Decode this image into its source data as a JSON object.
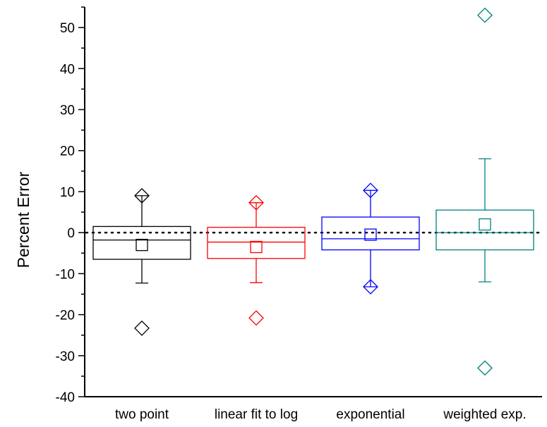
{
  "chart_data": {
    "type": "box",
    "title": "",
    "xlabel": "",
    "ylabel": "Percent Error",
    "ylim": [
      -40,
      55
    ],
    "yticks": [
      -40,
      -30,
      -20,
      -10,
      0,
      10,
      20,
      30,
      40,
      50
    ],
    "minor_step": 5,
    "grid": false,
    "legend": "none",
    "reference_line": {
      "y": 0,
      "style": "dotted",
      "color": "#000000"
    },
    "categories": [
      "two point",
      "linear fit to log",
      "exponential",
      "weighted exp."
    ],
    "series": [
      {
        "category": "two point",
        "color": "#000000",
        "whisker_low": -12.3,
        "q1": -6.5,
        "median": -1.8,
        "q3": 1.5,
        "whisker_high": 9.0,
        "mean": -3.0,
        "min": -23.3,
        "max": 9.0
      },
      {
        "category": "linear fit to log",
        "color": "#ff0000",
        "whisker_low": -12.2,
        "q1": -6.3,
        "median": -2.3,
        "q3": 1.3,
        "whisker_high": 7.3,
        "mean": -3.5,
        "min": -20.8,
        "max": 7.3
      },
      {
        "category": "exponential",
        "color": "#0000ff",
        "whisker_low": -13.2,
        "q1": -4.2,
        "median": -1.5,
        "q3": 3.8,
        "whisker_high": 10.3,
        "mean": -0.5,
        "min": -13.2,
        "max": 10.3
      },
      {
        "category": "weighted exp.",
        "color": "#008080",
        "whisker_low": -12.0,
        "q1": -4.2,
        "median": 0.0,
        "q3": 5.5,
        "whisker_high": 18.0,
        "mean": 2.0,
        "min": -33.0,
        "max": 53.0
      }
    ]
  }
}
